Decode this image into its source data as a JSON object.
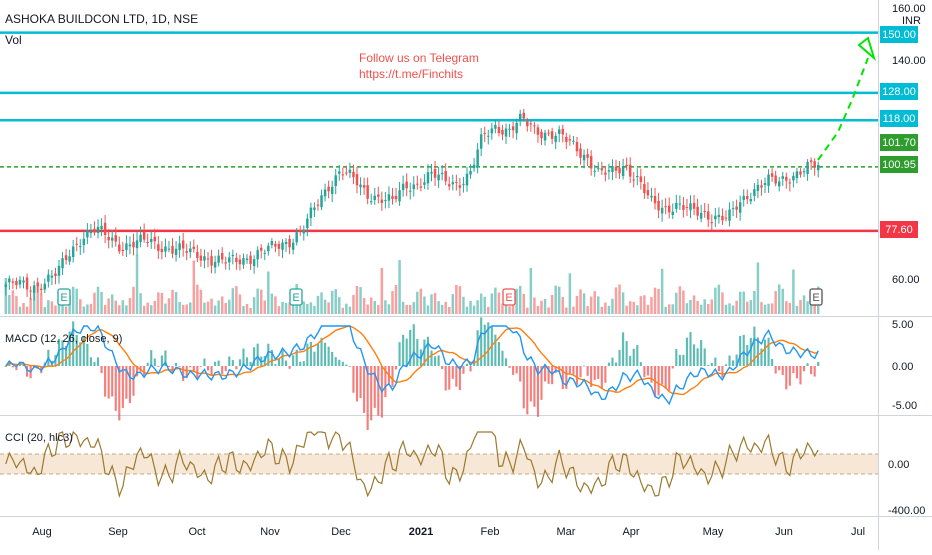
{
  "header": {
    "title": "ASHOKA BUILDCON LTD, 1D, NSE",
    "vol_label": "Vol",
    "currency": "INR"
  },
  "annotation": {
    "line1": "Follow us on Telegram",
    "line2": "https://t.me/Finchits"
  },
  "colors": {
    "up": "#26a69a",
    "down": "#ef5350",
    "level": "#00bcd4",
    "support": "#f23645",
    "dashed": "#2e9d2e",
    "arrow": "#00e600",
    "macd_line": "#2196f3",
    "signal_line": "#ff7f0e",
    "cci_line": "#9b7a2e",
    "cci_band": "#f7e7d6"
  },
  "price_axis": {
    "ticks": [
      "160.00",
      "140.00",
      "60.00"
    ]
  },
  "level_tags": [
    {
      "label": "150.00",
      "kind": "level"
    },
    {
      "label": "128.00",
      "kind": "level"
    },
    {
      "label": "118.00",
      "kind": "level"
    },
    {
      "label": "101.70",
      "kind": "last"
    },
    {
      "label": "100.95",
      "kind": "dashed"
    },
    {
      "label": "77.60",
      "kind": "support"
    }
  ],
  "earnings_markers": [
    {
      "label": "E",
      "kind": "up"
    },
    {
      "label": "E",
      "kind": "up"
    },
    {
      "label": "E",
      "kind": "down"
    },
    {
      "label": "E",
      "kind": "future"
    }
  ],
  "macd": {
    "label": "MACD (12, 26, close, 9)",
    "ticks": [
      "5.00",
      "0.00",
      "-5.00"
    ]
  },
  "cci": {
    "label": "CCI (20, hlc3)",
    "ticks": [
      "0.00",
      "-400.00"
    ]
  },
  "time_axis": {
    "labels": [
      "Aug",
      "Sep",
      "Oct",
      "Nov",
      "Dec",
      "2021",
      "Feb",
      "Mar",
      "Apr",
      "May",
      "Jun",
      "Jul"
    ]
  },
  "chart_data": {
    "type": "candlestick",
    "title": "ASHOKA BUILDCON LTD, 1D, NSE",
    "xlabel": "",
    "ylabel": "",
    "x": [
      "Jul",
      "Aug",
      "Sep",
      "Oct",
      "Nov",
      "Dec",
      "2021",
      "Feb",
      "Mar",
      "Apr",
      "May",
      "Jun"
    ],
    "close_series": [
      58,
      58,
      57,
      59,
      62,
      70,
      76,
      78,
      75,
      72,
      73,
      74,
      72,
      71,
      70,
      69,
      67,
      66,
      67,
      68,
      70,
      72,
      74,
      78,
      86,
      94,
      100,
      96,
      91,
      90,
      88,
      94,
      95,
      98,
      96,
      95,
      98,
      112,
      116,
      114,
      118,
      115,
      113,
      112,
      109,
      105,
      98,
      99,
      102,
      96,
      88,
      86,
      87,
      85,
      84,
      83,
      82,
      88,
      93,
      96,
      95,
      98,
      101,
      101
    ],
    "ylim": [
      50,
      162
    ],
    "levels": [
      150.0,
      128.0,
      118.0,
      101.7,
      100.95,
      77.6
    ]
  }
}
